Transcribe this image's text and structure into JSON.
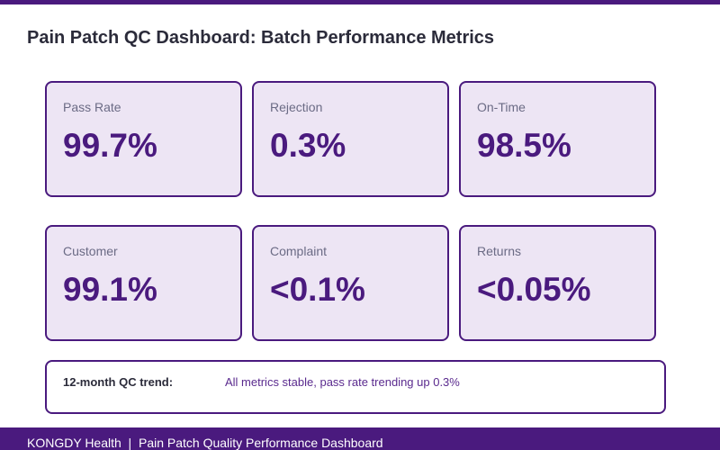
{
  "header": {
    "title": "Pain Patch QC Dashboard: Batch Performance Metrics"
  },
  "metrics": [
    {
      "label": "Pass Rate",
      "value": "99.7%"
    },
    {
      "label": "Rejection",
      "value": "0.3%"
    },
    {
      "label": "On-Time",
      "value": "98.5%"
    },
    {
      "label": "Customer",
      "value": "99.1%"
    },
    {
      "label": "Complaint",
      "value": "<0.1%"
    },
    {
      "label": "Returns",
      "value": "<0.05%"
    }
  ],
  "trend": {
    "label": "12-month QC trend:",
    "text": "All metrics stable, pass rate trending up 0.3%"
  },
  "footer": {
    "text": "KONGDY Health  |  Pain Patch Quality Performance Dashboard"
  },
  "colors": {
    "accent": "#4a1a7e",
    "card_background": "#ede5f4",
    "label_text": "#6b6b85"
  }
}
